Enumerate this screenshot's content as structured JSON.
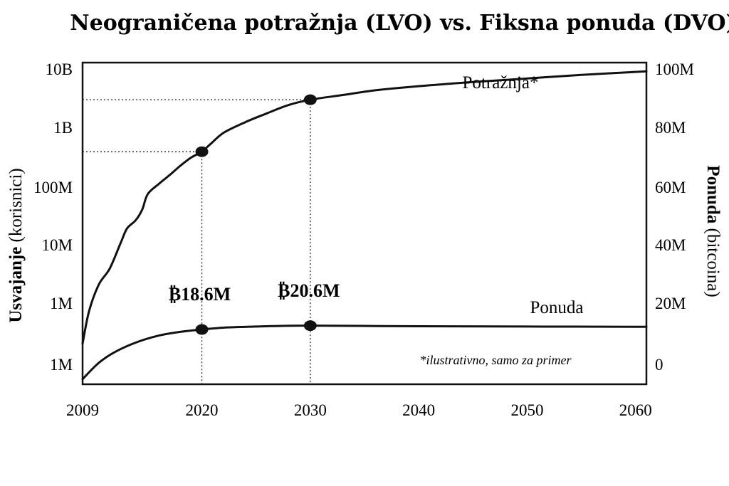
{
  "chart_data": {
    "type": "line",
    "title": "Neograničena potražnja (LVO) vs. Fiksna ponuda (DVO)",
    "x_ticks": [
      "2009",
      "2020",
      "2030",
      "2040",
      "2050",
      "2060"
    ],
    "x_range": [
      2009,
      2061
    ],
    "left_axis": {
      "label_bold": "Usvajanje",
      "label_normal": " (korisnici)",
      "scale": "log",
      "ticks": [
        "1M",
        "1M",
        "10M",
        "100M",
        "1B",
        "10B"
      ]
    },
    "right_axis": {
      "label_bold": "Ponuda",
      "label_normal": " (bitcoina)",
      "range": [
        0,
        100
      ],
      "unit": "M",
      "ticks": [
        "0",
        "20M",
        "40M",
        "60M",
        "80M",
        "100M"
      ]
    },
    "grid": false,
    "series": [
      {
        "name": "Potražnja*",
        "axis": "left",
        "points": [
          [
            2009,
            0.35
          ],
          [
            2009.6,
            0.9
          ],
          [
            2010.5,
            1.35
          ],
          [
            2011.5,
            1.62
          ],
          [
            2012.5,
            2.05
          ],
          [
            2013.1,
            2.3
          ],
          [
            2013.9,
            2.44
          ],
          [
            2014.5,
            2.62
          ],
          [
            2015,
            2.88
          ],
          [
            2016,
            3.05
          ],
          [
            2017,
            3.2
          ],
          [
            2018,
            3.36
          ],
          [
            2019,
            3.5
          ],
          [
            2020,
            3.6
          ],
          [
            2020.8,
            3.73
          ],
          [
            2022,
            3.92
          ],
          [
            2024,
            4.1
          ],
          [
            2026,
            4.25
          ],
          [
            2028,
            4.39
          ],
          [
            2030,
            4.48
          ],
          [
            2033,
            4.56
          ],
          [
            2036,
            4.64
          ],
          [
            2040,
            4.71
          ],
          [
            2045,
            4.78
          ],
          [
            2050,
            4.84
          ],
          [
            2055,
            4.9
          ],
          [
            2061,
            4.96
          ]
        ]
      },
      {
        "name": "Ponuda",
        "axis": "right",
        "points": [
          [
            2009,
            -5
          ],
          [
            2010.5,
            0.5
          ],
          [
            2012,
            4.2
          ],
          [
            2014,
            7.5
          ],
          [
            2016,
            9.7
          ],
          [
            2018,
            11
          ],
          [
            2020,
            11.8
          ],
          [
            2022,
            12.4
          ],
          [
            2025,
            12.8
          ],
          [
            2027,
            13
          ],
          [
            2030,
            13.1
          ],
          [
            2040,
            12.9
          ],
          [
            2050,
            12.8
          ],
          [
            2061,
            12.7
          ]
        ]
      }
    ],
    "highlights": [
      {
        "x": 2020,
        "series": "Potražnja*",
        "y": 3.6
      },
      {
        "x": 2030,
        "series": "Potražnja*",
        "y": 4.48
      },
      {
        "x": 2020,
        "series": "Ponuda",
        "y": 11.8,
        "label": "₿18.6M"
      },
      {
        "x": 2030,
        "series": "Ponuda",
        "y": 13.1,
        "label": "₿20.6M"
      }
    ],
    "note": "*ilustrativno, samo za primer"
  }
}
